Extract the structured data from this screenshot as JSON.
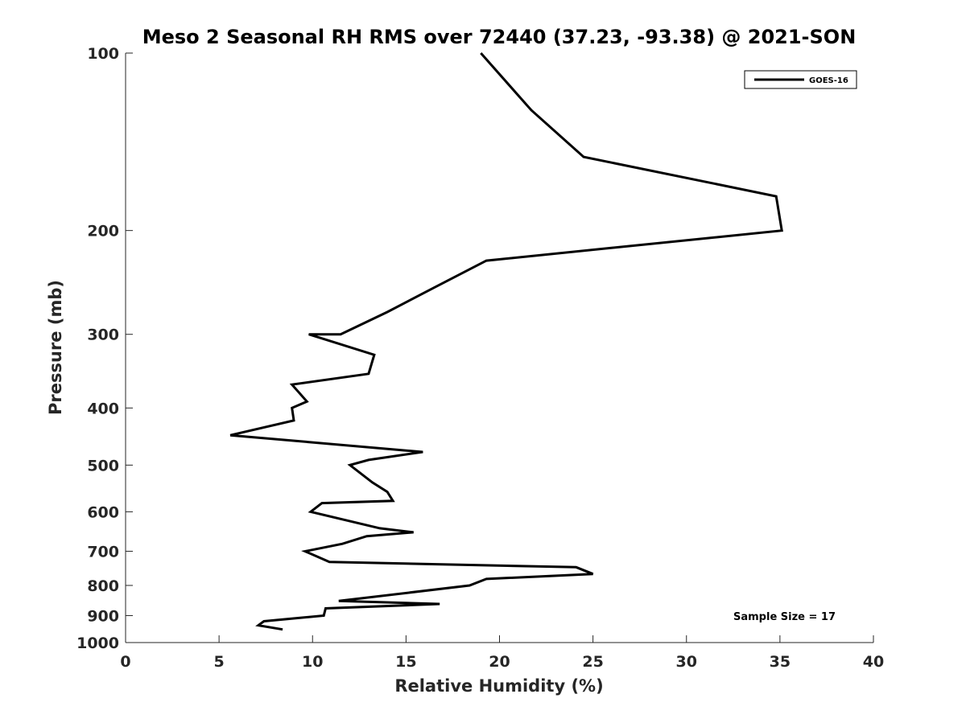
{
  "chart_data": {
    "type": "line",
    "title": "Meso 2 Seasonal RH RMS over 72440 (37.23, -93.38) @ 2021-SON",
    "xlabel": "Relative Humidity (%)",
    "ylabel": "Pressure (mb)",
    "xlim": [
      0,
      40
    ],
    "ylim": [
      100,
      1000
    ],
    "y_scale": "log",
    "y_reversed": true,
    "grid": false,
    "legend_position": "top-right",
    "x_ticks": [
      0,
      5,
      10,
      15,
      20,
      25,
      30,
      35,
      40
    ],
    "x_tick_labels": [
      "0",
      "5",
      "10",
      "15",
      "20",
      "25",
      "30",
      "35",
      "40"
    ],
    "y_ticks": [
      100,
      200,
      300,
      400,
      500,
      600,
      700,
      800,
      900,
      1000
    ],
    "y_tick_labels": [
      "100",
      "200",
      "300",
      "400",
      "500",
      "600",
      "700",
      "800",
      "900",
      "1000"
    ],
    "annotation": "Sample Size = 17",
    "series": [
      {
        "name": "GOES-16",
        "color": "#000000",
        "points": [
          [
            19.0,
            100
          ],
          [
            21.7,
            125
          ],
          [
            24.5,
            150
          ],
          [
            34.8,
            175
          ],
          [
            35.1,
            200
          ],
          [
            19.3,
            225
          ],
          [
            16.5,
            250
          ],
          [
            14.0,
            275
          ],
          [
            11.5,
            300
          ],
          [
            9.8,
            300
          ],
          [
            13.3,
            325
          ],
          [
            13.0,
            350
          ],
          [
            8.9,
            365
          ],
          [
            9.7,
            390
          ],
          [
            8.9,
            400
          ],
          [
            9.0,
            420
          ],
          [
            5.6,
            445
          ],
          [
            15.9,
            475
          ],
          [
            13.0,
            490
          ],
          [
            12.0,
            500
          ],
          [
            13.2,
            535
          ],
          [
            14.0,
            555
          ],
          [
            14.3,
            575
          ],
          [
            10.5,
            580
          ],
          [
            9.9,
            600
          ],
          [
            13.6,
            640
          ],
          [
            15.4,
            650
          ],
          [
            12.9,
            660
          ],
          [
            11.6,
            680
          ],
          [
            9.6,
            700
          ],
          [
            10.9,
            730
          ],
          [
            24.1,
            745
          ],
          [
            25.0,
            765
          ],
          [
            19.3,
            780
          ],
          [
            18.4,
            800
          ],
          [
            11.4,
            850
          ],
          [
            16.8,
            860
          ],
          [
            10.7,
            875
          ],
          [
            10.6,
            900
          ],
          [
            7.4,
            920
          ],
          [
            7.1,
            935
          ],
          [
            8.4,
            950
          ]
        ]
      }
    ]
  }
}
